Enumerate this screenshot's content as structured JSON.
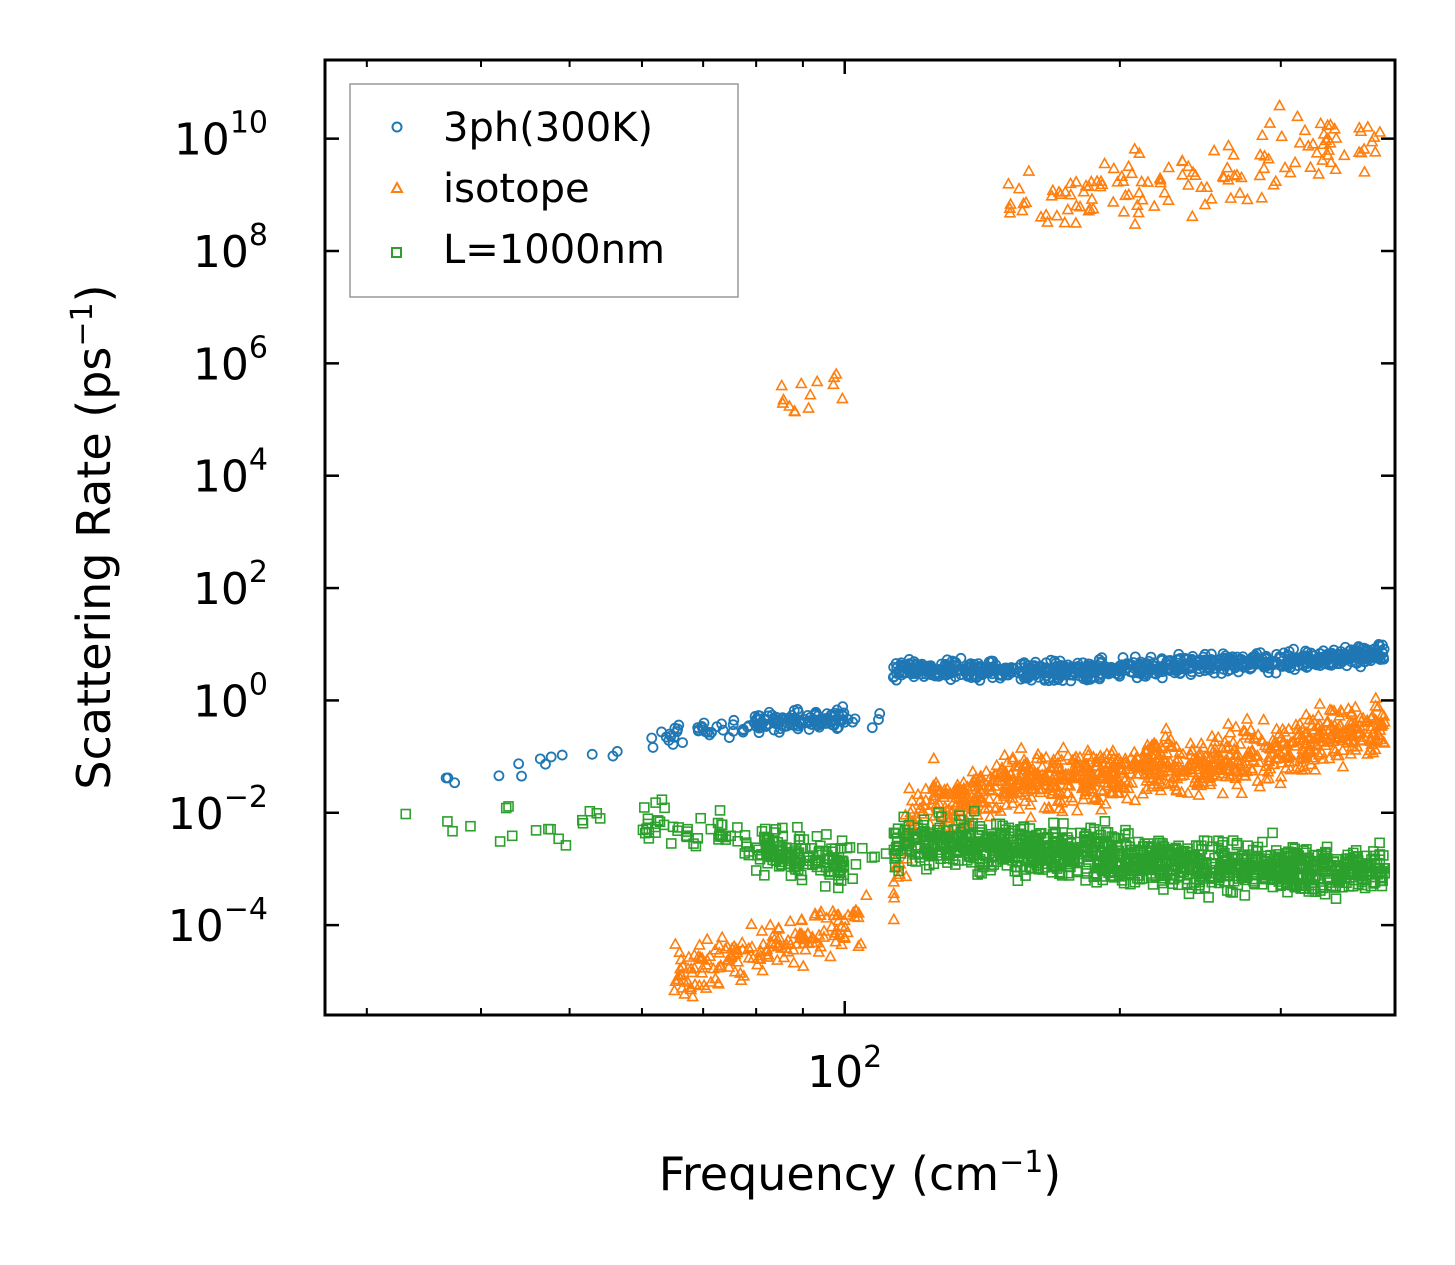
{
  "chart_data": {
    "type": "scatter",
    "xscale": "log",
    "yscale": "log",
    "xlabel": "Frequency (cm",
    "xlabel_sup": "−1",
    "xlabel_end": ")",
    "ylabel": "Scattering Rate (ps",
    "ylabel_sup": "−1",
    "ylabel_end": ")",
    "xlim": [
      27,
      400
    ],
    "ylim_log10": [
      -5.6,
      11.4
    ],
    "x_ticks": [
      {
        "value": 100,
        "base": "10",
        "exp": "2"
      }
    ],
    "y_ticks": [
      {
        "log": 10,
        "base": "10",
        "exp": "10"
      },
      {
        "log": 8,
        "base": "10",
        "exp": "8"
      },
      {
        "log": 6,
        "base": "10",
        "exp": "6"
      },
      {
        "log": 4,
        "base": "10",
        "exp": "4"
      },
      {
        "log": 2,
        "base": "10",
        "exp": "2"
      },
      {
        "log": 0,
        "base": "10",
        "exp": "0"
      },
      {
        "log": -2,
        "base": "10",
        "exp": "−2"
      },
      {
        "log": -4,
        "base": "10",
        "exp": "−4"
      }
    ],
    "legend_position": "upper-left",
    "series": [
      {
        "name": "3ph(300K)",
        "color": "#1f77b4",
        "marker": "circle",
        "trend": [
          [
            31,
            -1.6
          ],
          [
            40,
            -1.4
          ],
          [
            50,
            -1.0
          ],
          [
            60,
            -0.75
          ],
          [
            70,
            -0.55
          ],
          [
            80,
            -0.4
          ],
          [
            90,
            -0.35
          ],
          [
            100,
            -0.3
          ],
          [
            112,
            -0.3
          ],
          [
            113,
            0.55
          ],
          [
            130,
            0.55
          ],
          [
            160,
            0.5
          ],
          [
            200,
            0.55
          ],
          [
            250,
            0.65
          ],
          [
            300,
            0.7
          ],
          [
            350,
            0.78
          ],
          [
            390,
            0.85
          ]
        ],
        "density": [
          [
            31,
            40,
            3
          ],
          [
            40,
            60,
            10
          ],
          [
            60,
            80,
            40
          ],
          [
            80,
            100,
            120
          ],
          [
            100,
            112,
            6
          ],
          [
            113,
            130,
            90
          ],
          [
            130,
            390,
            700
          ]
        ],
        "spread": 0.12
      },
      {
        "name": "isotope",
        "color": "#ff7f0e",
        "marker": "triangle",
        "trend": [
          [
            65,
            -4.9
          ],
          [
            75,
            -4.6
          ],
          [
            85,
            -4.35
          ],
          [
            95,
            -4.1
          ],
          [
            100,
            -4.0
          ],
          [
            112,
            -3.6
          ],
          [
            118,
            -2.2
          ],
          [
            125,
            -1.7
          ],
          [
            130,
            -1.9
          ],
          [
            150,
            -1.5
          ],
          [
            180,
            -1.35
          ],
          [
            220,
            -1.2
          ],
          [
            260,
            -1.1
          ],
          [
            300,
            -0.9
          ],
          [
            340,
            -0.6
          ],
          [
            390,
            -0.5
          ]
        ],
        "density": [
          [
            65,
            100,
            160
          ],
          [
            100,
            112,
            12
          ],
          [
            113,
            130,
            80
          ],
          [
            130,
            390,
            900
          ]
        ],
        "spread": 0.35,
        "high_group": {
          "trend": [
            [
              85,
              5.4
            ],
            [
              90,
              5.6
            ],
            [
              95,
              5.7
            ],
            [
              100,
              5.8
            ]
          ],
          "count": 14,
          "spread": 0.35
        },
        "top_group": {
          "trend": [
            [
              150,
              8.9
            ],
            [
              180,
              9.0
            ],
            [
              220,
              9.2
            ],
            [
              260,
              9.4
            ],
            [
              300,
              9.7
            ],
            [
              350,
              9.9
            ],
            [
              390,
              10.0
            ]
          ],
          "count": 140,
          "spread": 0.45
        }
      },
      {
        "name": "L=1000nm",
        "color": "#2ca02c",
        "marker": "square",
        "trend": [
          [
            31,
            -2.25
          ],
          [
            40,
            -2.2
          ],
          [
            50,
            -2.18
          ],
          [
            60,
            -2.2
          ],
          [
            70,
            -2.3
          ],
          [
            80,
            -2.6
          ],
          [
            90,
            -2.8
          ],
          [
            100,
            -2.9
          ],
          [
            112,
            -2.7
          ],
          [
            113,
            -2.6
          ],
          [
            130,
            -2.55
          ],
          [
            160,
            -2.65
          ],
          [
            200,
            -2.8
          ],
          [
            250,
            -2.95
          ],
          [
            300,
            -3.0
          ],
          [
            350,
            -3.05
          ],
          [
            390,
            -3.0
          ]
        ],
        "density": [
          [
            31,
            40,
            4
          ],
          [
            40,
            60,
            14
          ],
          [
            60,
            80,
            50
          ],
          [
            80,
            100,
            150
          ],
          [
            100,
            112,
            8
          ],
          [
            113,
            130,
            100
          ],
          [
            130,
            390,
            1100
          ]
        ],
        "spread": 0.3
      }
    ]
  }
}
